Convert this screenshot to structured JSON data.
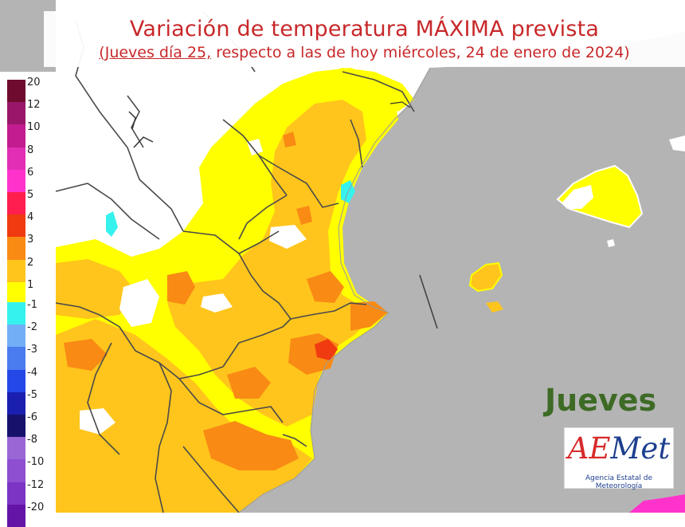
{
  "title": {
    "line1": "Variación de temperatura MÁXIMA prevista",
    "line2_underlined": "(Jueves día 25,",
    "line2_rest": " respecto a las de hoy miércoles, 24 de enero de 2024)"
  },
  "legend": {
    "items": [
      {
        "label": "20",
        "color": "#6e0b2e"
      },
      {
        "label": "12",
        "color": "#99176a"
      },
      {
        "label": "10",
        "color": "#c21c90"
      },
      {
        "label": "8",
        "color": "#e22eb5"
      },
      {
        "label": "6",
        "color": "#ff33cc"
      },
      {
        "label": "5",
        "color": "#ff1e4e"
      },
      {
        "label": "4",
        "color": "#f03a10"
      },
      {
        "label": "3",
        "color": "#f98a14"
      },
      {
        "label": "2",
        "color": "#ffc51c"
      },
      {
        "label": "1",
        "color": "#ffff00"
      },
      {
        "label": "-1",
        "color": "#36f2ee"
      },
      {
        "label": "-2",
        "color": "#72aef5"
      },
      {
        "label": "-3",
        "color": "#4a7bef"
      },
      {
        "label": "-4",
        "color": "#2448e8"
      },
      {
        "label": "-5",
        "color": "#1a1fb0"
      },
      {
        "label": "-6",
        "color": "#16126c"
      },
      {
        "label": "-8",
        "color": "#9a66d6"
      },
      {
        "label": "-10",
        "color": "#8e4fd0"
      },
      {
        "label": "-12",
        "color": "#7c34c4"
      },
      {
        "label": "-20",
        "color": "#6415a6"
      }
    ]
  },
  "day_label": "Jueves",
  "logo": {
    "letters": [
      "A",
      "E",
      "M",
      "e",
      "t"
    ],
    "subtitle": "Agencia Estatal de Meteorología",
    "color_red": "#d62a2a",
    "color_blue": "#1d3f8f"
  },
  "map_colors": {
    "sea": "#b4b4b4",
    "no_change": "#ffffff",
    "plus1": "#ffff00",
    "plus2": "#ffc51c",
    "plus3": "#f98a14",
    "plus4": "#f03a10",
    "minus1": "#36f2ee",
    "border": "#4a4a4a",
    "day_label_color": "#3d6b25"
  }
}
